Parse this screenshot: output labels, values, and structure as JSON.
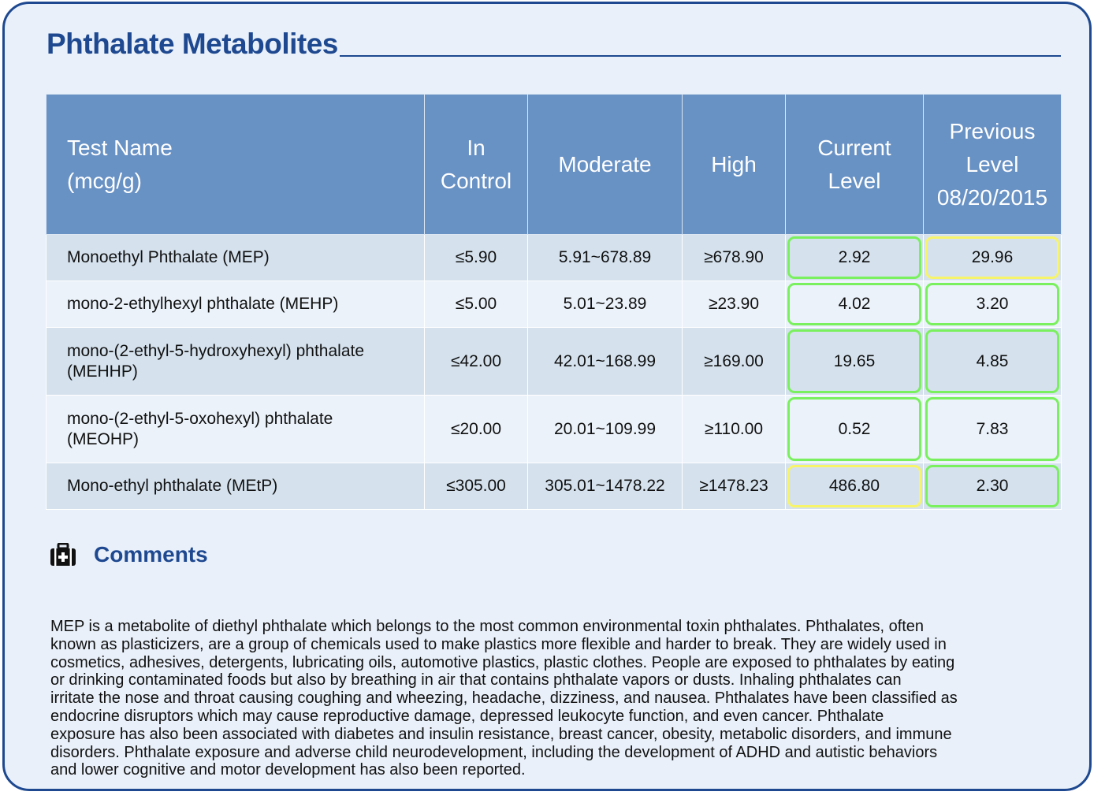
{
  "section": {
    "title": "Phthalate Metabolites"
  },
  "table": {
    "headers": {
      "name": [
        "Test Name",
        "(mcg/g)"
      ],
      "in_control": [
        "In",
        "Control"
      ],
      "moderate": [
        "Moderate"
      ],
      "high": [
        "High"
      ],
      "current": [
        "Current",
        "Level"
      ],
      "previous": [
        "Previous",
        "Level",
        "08/20/2015"
      ]
    },
    "rows": [
      {
        "name": [
          "Monoethyl Phthalate (MEP)"
        ],
        "in_control": "≤5.90",
        "moderate": "5.91~678.89",
        "high": "≥678.90",
        "current": "2.92",
        "current_status": "green",
        "previous": "29.96",
        "previous_status": "yellow"
      },
      {
        "name": [
          "mono-2-ethylhexyl phthalate (MEHP)"
        ],
        "in_control": "≤5.00",
        "moderate": "5.01~23.89",
        "high": "≥23.90",
        "current": "4.02",
        "current_status": "green",
        "previous": "3.20",
        "previous_status": "green"
      },
      {
        "name": [
          "mono-(2-ethyl-5-hydroxyhexyl) phthalate",
          "(MEHHP)"
        ],
        "in_control": "≤42.00",
        "moderate": "42.01~168.99",
        "high": "≥169.00",
        "current": "19.65",
        "current_status": "green",
        "previous": "4.85",
        "previous_status": "green"
      },
      {
        "name": [
          "mono-(2-ethyl-5-oxohexyl) phthalate",
          "(MEOHP)"
        ],
        "in_control": "≤20.00",
        "moderate": "20.01~109.99",
        "high": "≥110.00",
        "current": "0.52",
        "current_status": "green",
        "previous": "7.83",
        "previous_status": "green"
      },
      {
        "name": [
          "Mono-ethyl phthalate (MEtP)"
        ],
        "in_control": "≤305.00",
        "moderate": "305.01~1478.22",
        "high": "≥1478.23",
        "current": "486.80",
        "current_status": "yellow",
        "previous": "2.30",
        "previous_status": "green"
      }
    ]
  },
  "comments": {
    "icon": "first-aid-kit-icon",
    "title": "Comments",
    "lines": [
      "MEP is a metabolite of diethyl phthalate which belongs to the most common environmental toxin phthalates. Phthalates, often",
      "known as plasticizers, are a group of chemicals used to make plastics more flexible and harder to break. They are widely used in",
      "cosmetics, adhesives, detergents, lubricating oils, automotive plastics, plastic clothes. People are exposed to phthalates by eating",
      "or drinking contaminated foods but also by breathing in air that contains phthalate vapors or dusts. Inhaling phthalates can",
      "irritate the nose and throat causing coughing and wheezing, headache, dizziness, and nausea. Phthalates have been classified as",
      "endocrine disruptors which may cause reproductive damage, depressed leukocyte function, and even cancer. Phthalate",
      "exposure has also been associated with diabetes and insulin resistance, breast cancer, obesity, metabolic disorders, and immune",
      "disorders. Phthalate exposure and adverse child neurodevelopment, including the development of ADHD and autistic behaviors",
      "and lower cognitive and motor development has also been reported."
    ]
  },
  "colors": {
    "brand": "#1e4990",
    "header_bg": "#6891c4",
    "status_green": "#7af05e",
    "status_yellow": "#f7f46a"
  }
}
